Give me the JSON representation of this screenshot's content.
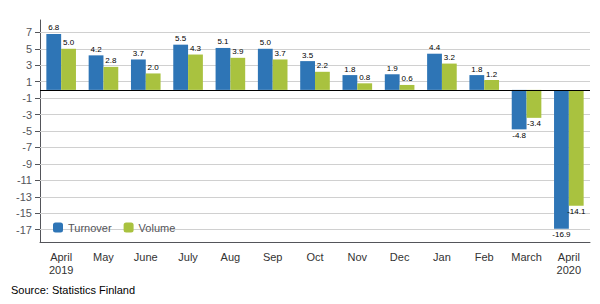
{
  "chart_data": {
    "type": "bar",
    "categories": [
      "April\n2019",
      "May",
      "June",
      "July",
      "Aug",
      "Sep",
      "Oct",
      "Nov",
      "Dec",
      "Jan",
      "Feb",
      "March",
      "April\n2020"
    ],
    "series": [
      {
        "name": "Turnover",
        "color": "#2E75B6",
        "values": [
          6.8,
          4.2,
          3.7,
          5.5,
          5.1,
          5.0,
          3.5,
          1.8,
          1.9,
          4.4,
          1.8,
          -4.8,
          -16.9
        ],
        "value_labels": [
          "6.8",
          "4.2",
          "3.7",
          "5.5",
          "5.1",
          "5.0",
          "3.5",
          "1.8",
          "1.9",
          "4.4",
          "1.8",
          "-4.8",
          "-16.9"
        ]
      },
      {
        "name": "Volume",
        "color": "#A9C23F",
        "values": [
          5.0,
          2.8,
          2.0,
          4.3,
          3.9,
          3.7,
          2.2,
          0.8,
          0.6,
          3.2,
          1.2,
          -3.4,
          -14.1
        ],
        "value_labels": [
          "5.0",
          "2.8",
          "2.0",
          "4.3",
          "3.9",
          "3.7",
          "2.2",
          "0.8",
          "0.6",
          "3.2",
          "1.2",
          "-3.4",
          "-14.1"
        ]
      }
    ],
    "ylim": [
      -18.5,
      8.5
    ],
    "yticks": [
      -17,
      -15,
      -13,
      -11,
      -9,
      -7,
      -5,
      -3,
      -1,
      1,
      3,
      5,
      7
    ],
    "annotations": [
      "Source: Statistics Finland"
    ],
    "grid": true,
    "legend": "lower left",
    "data_labels": true
  }
}
